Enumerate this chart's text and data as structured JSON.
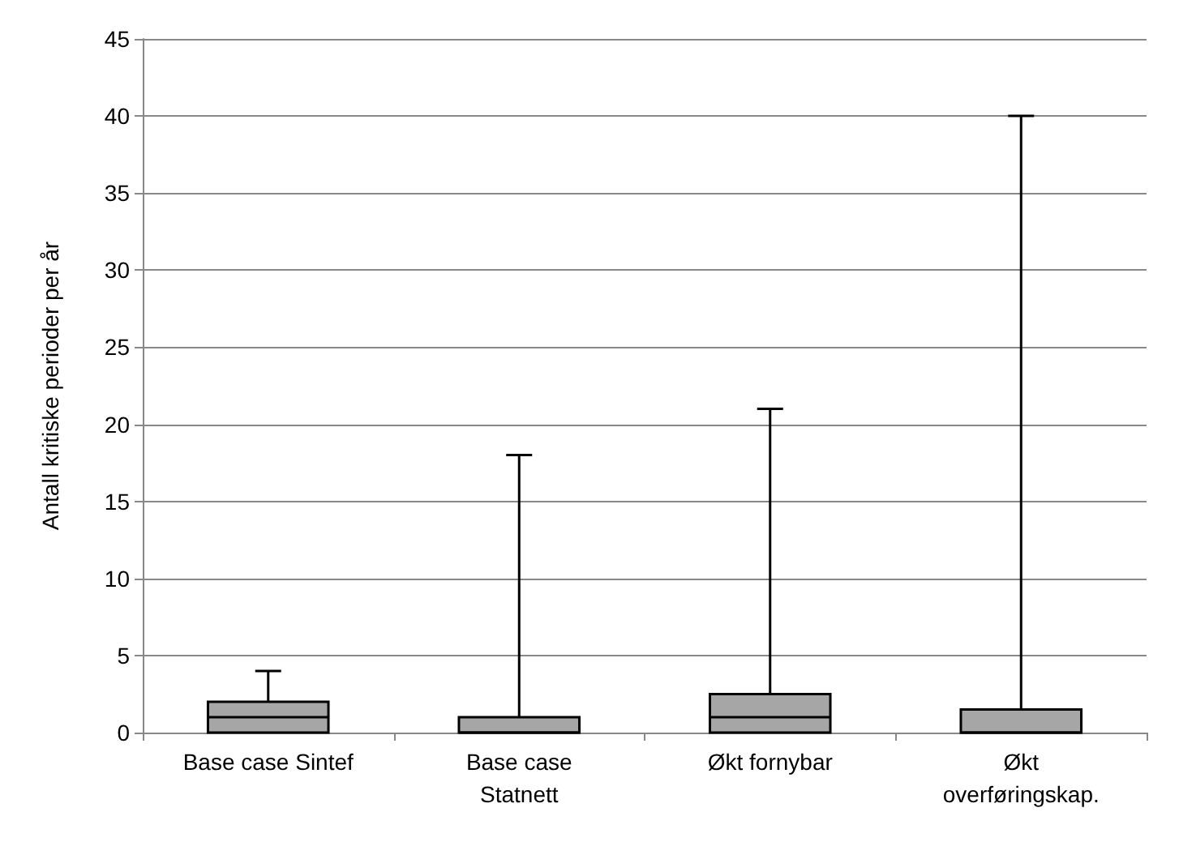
{
  "chart_data": {
    "type": "box",
    "ylabel": "Antall kritiske perioder per år",
    "categories": [
      "Base case Sintef",
      "Base case\nStatnett",
      "Økt fornybar",
      "Økt\noverføringskap."
    ],
    "boxes": [
      {
        "low": 0,
        "q1": 0,
        "median": 1,
        "q3": 2,
        "high": 4
      },
      {
        "low": 0,
        "q1": 0,
        "median": 0,
        "q3": 1,
        "high": 18
      },
      {
        "low": 0,
        "q1": 0,
        "median": 1,
        "q3": 2.5,
        "high": 21
      },
      {
        "low": 0,
        "q1": 0,
        "median": 0,
        "q3": 1.5,
        "high": 40
      }
    ],
    "color": "#a6a6a6",
    "ylim": [
      0,
      45
    ],
    "yticks": [
      0,
      5,
      10,
      15,
      20,
      25,
      30,
      35,
      40,
      45
    ],
    "grid": "y"
  }
}
